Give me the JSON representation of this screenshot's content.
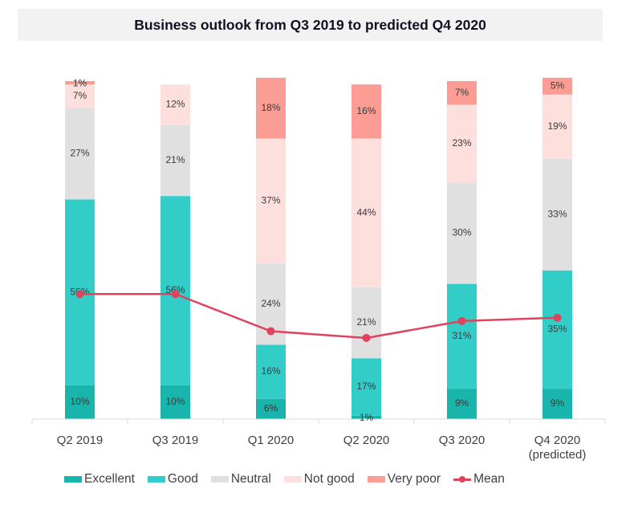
{
  "chart_data": {
    "type": "bar",
    "stacked": true,
    "title": "Business outlook from Q3 2019 to predicted Q4 2020",
    "xlabel": "",
    "ylabel": "",
    "ylim": [
      0,
      100
    ],
    "grid": false,
    "legend_position": "bottom",
    "categories": [
      {
        "line1": "Q2 2019",
        "line2": ""
      },
      {
        "line1": "Q3 2019",
        "line2": ""
      },
      {
        "line1": "Q1 2020",
        "line2": ""
      },
      {
        "line1": "Q2 2020",
        "line2": ""
      },
      {
        "line1": "Q3 2020",
        "line2": ""
      },
      {
        "line1": "Q4 2020",
        "line2": "(predicted)"
      }
    ],
    "series": [
      {
        "name": "Excellent",
        "color": "#19b5ac",
        "values": [
          10,
          10,
          6,
          1,
          9,
          9
        ],
        "labels": [
          "10%",
          "10%",
          "6%",
          "1%",
          "9%",
          "9%"
        ]
      },
      {
        "name": "Good",
        "color": "#33cdc8",
        "values": [
          55,
          56,
          16,
          17,
          31,
          35
        ],
        "labels": [
          "55%",
          "56%",
          "16%",
          "17%",
          "31%",
          "35%"
        ]
      },
      {
        "name": "Neutral",
        "color": "#e0e0e0",
        "values": [
          27,
          21,
          24,
          21,
          30,
          33
        ],
        "labels": [
          "27%",
          "21%",
          "24%",
          "21%",
          "30%",
          "33%"
        ]
      },
      {
        "name": "Not good",
        "color": "#fde0dd",
        "values": [
          7,
          12,
          37,
          44,
          23,
          19
        ],
        "labels": [
          "7%",
          "12%",
          "37%",
          "44%",
          "23%",
          "19%"
        ]
      },
      {
        "name": "Very poor",
        "color": "#fb9d94",
        "values": [
          1,
          0,
          18,
          16,
          7,
          5
        ],
        "labels": [
          "1%",
          "",
          "18%",
          "16%",
          "7%",
          "5%"
        ]
      }
    ],
    "line_series": {
      "name": "Mean",
      "color": "#e0435e",
      "values_on_bar_scale": [
        37,
        37,
        26,
        24,
        29,
        30
      ]
    }
  }
}
